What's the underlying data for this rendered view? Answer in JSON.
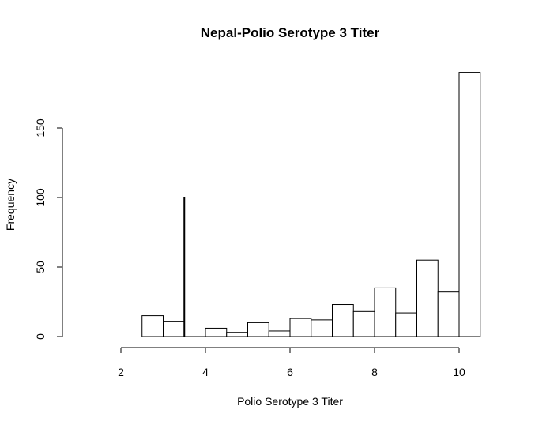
{
  "chart_data": {
    "type": "bar",
    "title": "Nepal-Polio Serotype 3 Titer",
    "xlabel": "Polio Serotype 3 Titer",
    "ylabel": "Frequency",
    "bin_width": 0.5,
    "bins": [
      {
        "start": 2.5,
        "end": 3.0,
        "value": 15
      },
      {
        "start": 3.0,
        "end": 3.5,
        "value": 11
      },
      {
        "start": 3.5,
        "end": 4.0,
        "value": 0
      },
      {
        "start": 4.0,
        "end": 4.5,
        "value": 6
      },
      {
        "start": 4.5,
        "end": 5.0,
        "value": 3
      },
      {
        "start": 5.0,
        "end": 5.5,
        "value": 10
      },
      {
        "start": 5.5,
        "end": 6.0,
        "value": 4
      },
      {
        "start": 6.0,
        "end": 6.5,
        "value": 13
      },
      {
        "start": 6.5,
        "end": 7.0,
        "value": 12
      },
      {
        "start": 7.0,
        "end": 7.5,
        "value": 23
      },
      {
        "start": 7.5,
        "end": 8.0,
        "value": 18
      },
      {
        "start": 8.0,
        "end": 8.5,
        "value": 35
      },
      {
        "start": 8.5,
        "end": 9.0,
        "value": 17
      },
      {
        "start": 9.0,
        "end": 9.5,
        "value": 55
      },
      {
        "start": 9.5,
        "end": 10.0,
        "value": 32
      },
      {
        "start": 10.0,
        "end": 10.5,
        "value": 190
      }
    ],
    "reference_line": {
      "x": 3.5,
      "y_from": 0,
      "y_to": 100
    },
    "xlim": [
      2,
      10.5
    ],
    "ylim": [
      0,
      190
    ],
    "x_ticks": [
      2,
      4,
      6,
      8,
      10
    ],
    "x_tick_labels": [
      "2",
      "4",
      "6",
      "8",
      "10"
    ],
    "y_ticks": [
      0,
      50,
      100,
      150
    ],
    "y_tick_labels": [
      "0",
      "50",
      "100",
      "150"
    ],
    "grid": false,
    "legend": "none"
  }
}
